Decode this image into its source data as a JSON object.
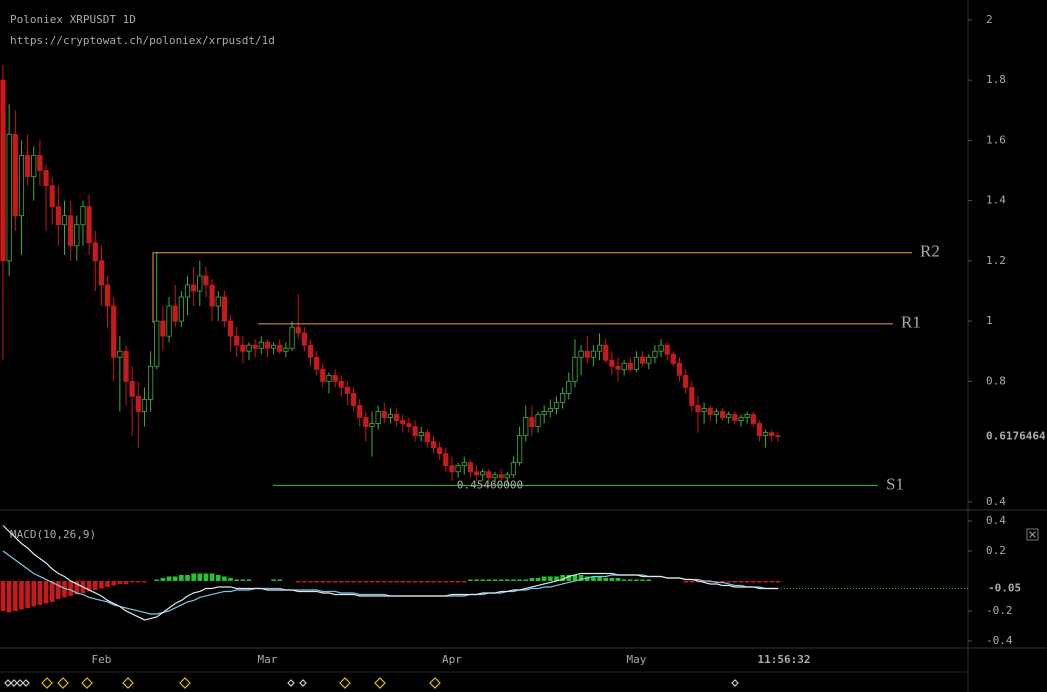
{
  "chart_data": [
    {
      "type": "candlestick",
      "title": "Poloniex XRPUSDT 1D",
      "subtitle": "https://cryptowat.ch/poloniex/xrpusdt/1d",
      "categories": [
        null,
        null,
        null,
        null,
        null,
        null,
        null,
        null,
        null,
        null,
        null,
        null,
        null,
        null,
        null,
        null,
        "Feb",
        null,
        null,
        null,
        null,
        null,
        null,
        null,
        null,
        null,
        null,
        null,
        null,
        null,
        null,
        null,
        null,
        null,
        null,
        null,
        null,
        null,
        null,
        null,
        null,
        null,
        null,
        "Mar",
        null,
        null,
        null,
        null,
        null,
        null,
        null,
        null,
        null,
        null,
        null,
        null,
        null,
        null,
        null,
        null,
        null,
        null,
        null,
        null,
        null,
        null,
        null,
        null,
        null,
        null,
        null,
        null,
        null,
        "Apr",
        null,
        null,
        null,
        null,
        null,
        null,
        null,
        null,
        null,
        null,
        null,
        null,
        null,
        null,
        null,
        null,
        null,
        null,
        null,
        null,
        null,
        null,
        null,
        null,
        null,
        null,
        null,
        null,
        null,
        "May",
        null,
        null,
        null,
        null,
        null,
        null,
        null,
        null,
        null,
        null,
        null,
        null,
        null,
        null,
        null,
        null,
        null,
        null,
        null,
        null,
        null,
        null,
        null,
        "11:56:32"
      ],
      "ohlc": [
        [
          1.8,
          1.85,
          0.87,
          1.2
        ],
        [
          1.2,
          1.72,
          1.15,
          1.62
        ],
        [
          1.62,
          1.7,
          1.3,
          1.35
        ],
        [
          1.35,
          1.6,
          1.22,
          1.55
        ],
        [
          1.55,
          1.62,
          1.45,
          1.48
        ],
        [
          1.48,
          1.58,
          1.4,
          1.55
        ],
        [
          1.55,
          1.6,
          1.45,
          1.5
        ],
        [
          1.5,
          1.52,
          1.3,
          1.45
        ],
        [
          1.45,
          1.48,
          1.32,
          1.38
        ],
        [
          1.38,
          1.45,
          1.25,
          1.32
        ],
        [
          1.32,
          1.4,
          1.22,
          1.35
        ],
        [
          1.35,
          1.4,
          1.2,
          1.25
        ],
        [
          1.25,
          1.35,
          1.2,
          1.32
        ],
        [
          1.32,
          1.4,
          1.25,
          1.38
        ],
        [
          1.38,
          1.42,
          1.22,
          1.26
        ],
        [
          1.26,
          1.3,
          1.1,
          1.2
        ],
        [
          1.2,
          1.25,
          1.05,
          1.12
        ],
        [
          1.12,
          1.15,
          0.98,
          1.05
        ],
        [
          1.05,
          1.08,
          0.8,
          0.88
        ],
        [
          0.88,
          0.95,
          0.7,
          0.9
        ],
        [
          0.9,
          0.92,
          0.72,
          0.8
        ],
        [
          0.8,
          0.85,
          0.62,
          0.75
        ],
        [
          0.75,
          0.8,
          0.58,
          0.7
        ],
        [
          0.7,
          0.78,
          0.65,
          0.74
        ],
        [
          0.74,
          0.9,
          0.7,
          0.85
        ],
        [
          0.85,
          1.23,
          0.84,
          1.0
        ],
        [
          1.0,
          1.05,
          0.9,
          0.95
        ],
        [
          0.95,
          1.08,
          0.93,
          1.05
        ],
        [
          1.05,
          1.12,
          0.98,
          1.0
        ],
        [
          1.0,
          1.1,
          0.98,
          1.08
        ],
        [
          1.08,
          1.15,
          1.02,
          1.12
        ],
        [
          1.12,
          1.18,
          1.05,
          1.1
        ],
        [
          1.1,
          1.2,
          1.05,
          1.15
        ],
        [
          1.15,
          1.18,
          1.08,
          1.12
        ],
        [
          1.12,
          1.14,
          1.0,
          1.05
        ],
        [
          1.05,
          1.1,
          1.0,
          1.08
        ],
        [
          1.08,
          1.1,
          0.98,
          1.0
        ],
        [
          1.0,
          1.02,
          0.9,
          0.95
        ],
        [
          0.95,
          0.98,
          0.88,
          0.92
        ],
        [
          0.92,
          0.95,
          0.86,
          0.9
        ],
        [
          0.9,
          0.93,
          0.87,
          0.92
        ],
        [
          0.92,
          0.94,
          0.88,
          0.91
        ],
        [
          0.91,
          0.95,
          0.89,
          0.93
        ],
        [
          0.93,
          0.94,
          0.88,
          0.91
        ],
        [
          0.91,
          0.93,
          0.89,
          0.92
        ],
        [
          0.92,
          0.94,
          0.89,
          0.9
        ],
        [
          0.9,
          0.93,
          0.88,
          0.91
        ],
        [
          0.91,
          1.0,
          0.9,
          0.98
        ],
        [
          0.98,
          1.09,
          0.94,
          0.96
        ],
        [
          0.96,
          0.98,
          0.9,
          0.92
        ],
        [
          0.92,
          0.94,
          0.85,
          0.88
        ],
        [
          0.88,
          0.9,
          0.82,
          0.84
        ],
        [
          0.84,
          0.86,
          0.78,
          0.8
        ],
        [
          0.8,
          0.83,
          0.76,
          0.82
        ],
        [
          0.82,
          0.84,
          0.78,
          0.8
        ],
        [
          0.8,
          0.82,
          0.75,
          0.78
        ],
        [
          0.78,
          0.8,
          0.72,
          0.76
        ],
        [
          0.76,
          0.78,
          0.7,
          0.72
        ],
        [
          0.72,
          0.74,
          0.65,
          0.68
        ],
        [
          0.68,
          0.7,
          0.6,
          0.65
        ],
        [
          0.65,
          0.7,
          0.55,
          0.66
        ],
        [
          0.66,
          0.72,
          0.64,
          0.7
        ],
        [
          0.7,
          0.73,
          0.66,
          0.68
        ],
        [
          0.68,
          0.71,
          0.66,
          0.69
        ],
        [
          0.69,
          0.71,
          0.65,
          0.67
        ],
        [
          0.67,
          0.69,
          0.63,
          0.66
        ],
        [
          0.66,
          0.68,
          0.63,
          0.65
        ],
        [
          0.65,
          0.67,
          0.6,
          0.62
        ],
        [
          0.62,
          0.65,
          0.6,
          0.63
        ],
        [
          0.63,
          0.64,
          0.58,
          0.6
        ],
        [
          0.6,
          0.62,
          0.56,
          0.58
        ],
        [
          0.58,
          0.6,
          0.54,
          0.56
        ],
        [
          0.56,
          0.58,
          0.5,
          0.52
        ],
        [
          0.52,
          0.55,
          0.47,
          0.5
        ],
        [
          0.5,
          0.53,
          0.48,
          0.52
        ],
        [
          0.52,
          0.55,
          0.49,
          0.53
        ],
        [
          0.53,
          0.54,
          0.48,
          0.5
        ],
        [
          0.5,
          0.52,
          0.47,
          0.49
        ],
        [
          0.49,
          0.51,
          0.47,
          0.5
        ],
        [
          0.5,
          0.51,
          0.47,
          0.48
        ],
        [
          0.48,
          0.5,
          0.46,
          0.49
        ],
        [
          0.49,
          0.51,
          0.47,
          0.48
        ],
        [
          0.48,
          0.5,
          0.46,
          0.49
        ],
        [
          0.49,
          0.55,
          0.48,
          0.53
        ],
        [
          0.53,
          0.65,
          0.52,
          0.62
        ],
        [
          0.62,
          0.72,
          0.6,
          0.68
        ],
        [
          0.68,
          0.72,
          0.62,
          0.65
        ],
        [
          0.65,
          0.7,
          0.63,
          0.69
        ],
        [
          0.69,
          0.72,
          0.66,
          0.7
        ],
        [
          0.7,
          0.74,
          0.68,
          0.71
        ],
        [
          0.71,
          0.75,
          0.69,
          0.73
        ],
        [
          0.73,
          0.78,
          0.71,
          0.76
        ],
        [
          0.76,
          0.83,
          0.74,
          0.8
        ],
        [
          0.8,
          0.94,
          0.78,
          0.88
        ],
        [
          0.88,
          0.92,
          0.82,
          0.9
        ],
        [
          0.9,
          0.95,
          0.86,
          0.88
        ],
        [
          0.88,
          0.92,
          0.85,
          0.9
        ],
        [
          0.9,
          0.96,
          0.87,
          0.92
        ],
        [
          0.92,
          0.94,
          0.86,
          0.87
        ],
        [
          0.87,
          0.9,
          0.82,
          0.85
        ],
        [
          0.85,
          0.88,
          0.8,
          0.84
        ],
        [
          0.84,
          0.87,
          0.82,
          0.86
        ],
        [
          0.86,
          0.88,
          0.83,
          0.84
        ],
        [
          0.84,
          0.9,
          0.83,
          0.88
        ],
        [
          0.88,
          0.9,
          0.85,
          0.86
        ],
        [
          0.86,
          0.89,
          0.84,
          0.88
        ],
        [
          0.88,
          0.92,
          0.86,
          0.9
        ],
        [
          0.9,
          0.94,
          0.88,
          0.92
        ],
        [
          0.92,
          0.93,
          0.87,
          0.89
        ],
        [
          0.89,
          0.9,
          0.85,
          0.86
        ],
        [
          0.86,
          0.88,
          0.8,
          0.82
        ],
        [
          0.82,
          0.84,
          0.76,
          0.78
        ],
        [
          0.78,
          0.8,
          0.7,
          0.72
        ],
        [
          0.72,
          0.75,
          0.63,
          0.7
        ],
        [
          0.7,
          0.73,
          0.66,
          0.71
        ],
        [
          0.71,
          0.72,
          0.67,
          0.69
        ],
        [
          0.69,
          0.71,
          0.66,
          0.7
        ],
        [
          0.7,
          0.71,
          0.67,
          0.68
        ],
        [
          0.68,
          0.7,
          0.66,
          0.69
        ],
        [
          0.69,
          0.7,
          0.66,
          0.67
        ],
        [
          0.67,
          0.69,
          0.65,
          0.68
        ],
        [
          0.68,
          0.7,
          0.66,
          0.69
        ],
        [
          0.69,
          0.7,
          0.65,
          0.66
        ],
        [
          0.66,
          0.67,
          0.6,
          0.62
        ],
        [
          0.62,
          0.64,
          0.58,
          0.63
        ],
        [
          0.63,
          0.64,
          0.6,
          0.62
        ],
        [
          0.62,
          0.63,
          0.6,
          0.6176464
        ]
      ],
      "up_color": "#3fae3f",
      "down_color": "#c81a1a",
      "ylim": [
        0.373,
        2.066
      ],
      "yticks": [
        0.4,
        0.8,
        1,
        1.2,
        1.4,
        1.6,
        1.8,
        2
      ],
      "levels": [
        {
          "name": "R2",
          "value": 1.227,
          "color": "#f0a030"
        },
        {
          "name": "R1",
          "value": 0.991,
          "color": "#f0a030"
        },
        {
          "name": "S1",
          "value": 0.4546,
          "value_label": "0.45460000",
          "color": "#3fc13f"
        }
      ]
    },
    {
      "type": "macd",
      "title": "MACD(10,26,9)",
      "histogram": [
        -0.2,
        -0.21,
        -0.2,
        -0.19,
        -0.18,
        -0.17,
        -0.16,
        -0.15,
        -0.14,
        -0.12,
        -0.11,
        -0.1,
        -0.09,
        -0.08,
        -0.07,
        -0.06,
        -0.05,
        -0.04,
        -0.03,
        -0.02,
        -0.02,
        -0.01,
        -0.01,
        -0.01,
        0,
        0.01,
        0.02,
        0.03,
        0.03,
        0.04,
        0.04,
        0.05,
        0.05,
        0.05,
        0.05,
        0.04,
        0.03,
        0.02,
        0.01,
        0.01,
        0.01,
        0,
        0,
        0,
        0.01,
        0.01,
        0,
        0,
        -0.01,
        -0.01,
        -0.01,
        -0.01,
        -0.01,
        -0.01,
        -0.01,
        -0.01,
        -0.01,
        -0.01,
        -0.01,
        -0.01,
        -0.01,
        -0.01,
        -0.01,
        -0.01,
        -0.01,
        -0.01,
        -0.01,
        -0.01,
        -0.01,
        -0.01,
        -0.01,
        -0.01,
        -0.01,
        -0.01,
        -0.01,
        -0.01,
        0.01,
        0.01,
        0.01,
        0.01,
        0.01,
        0.01,
        0.01,
        0.01,
        0.01,
        0.01,
        0.02,
        0.02,
        0.03,
        0.03,
        0.03,
        0.04,
        0.04,
        0.04,
        0.04,
        0.03,
        0.03,
        0.03,
        0.02,
        0.02,
        0.02,
        0.01,
        0.01,
        0.01,
        0.01,
        0.01,
        0,
        0,
        0,
        0,
        0,
        -0.01,
        -0.01,
        -0.01,
        -0.01,
        -0.01,
        -0.01,
        -0.01,
        -0.01,
        -0.01,
        -0.01,
        -0.01,
        -0.01,
        -0.01,
        -0.01,
        -0.01,
        -0.01
      ],
      "up_color": "#22c62a",
      "down_color": "#c81a1a",
      "macd": {
        "color": "#dfe8ee",
        "values": [
          0.37,
          0.33,
          0.29,
          0.25,
          0.22,
          0.18,
          0.15,
          0.12,
          0.08,
          0.05,
          0.03,
          0,
          -0.02,
          -0.04,
          -0.06,
          -0.08,
          -0.1,
          -0.13,
          -0.15,
          -0.17,
          -0.2,
          -0.22,
          -0.24,
          -0.26,
          -0.25,
          -0.24,
          -0.21,
          -0.18,
          -0.15,
          -0.13,
          -0.1,
          -0.08,
          -0.07,
          -0.05,
          -0.05,
          -0.04,
          -0.04,
          -0.04,
          -0.05,
          -0.05,
          -0.05,
          -0.05,
          -0.05,
          -0.06,
          -0.06,
          -0.06,
          -0.06,
          -0.06,
          -0.07,
          -0.07,
          -0.07,
          -0.07,
          -0.08,
          -0.08,
          -0.09,
          -0.09,
          -0.09,
          -0.09,
          -0.1,
          -0.1,
          -0.1,
          -0.1,
          -0.1,
          -0.1,
          -0.1,
          -0.1,
          -0.1,
          -0.1,
          -0.1,
          -0.1,
          -0.1,
          -0.1,
          -0.1,
          -0.09,
          -0.09,
          -0.09,
          -0.09,
          -0.09,
          -0.08,
          -0.08,
          -0.08,
          -0.07,
          -0.07,
          -0.06,
          -0.06,
          -0.05,
          -0.04,
          -0.03,
          -0.02,
          -0.01,
          0,
          0.01,
          0.03,
          0.04,
          0.05,
          0.05,
          0.05,
          0.05,
          0.05,
          0.05,
          0.04,
          0.04,
          0.04,
          0.04,
          0.03,
          0.03,
          0.03,
          0.03,
          0.02,
          0.02,
          0.02,
          0.01,
          0.01,
          0,
          -0.01,
          -0.02,
          -0.02,
          -0.03,
          -0.03,
          -0.04,
          -0.04,
          -0.04,
          -0.04,
          -0.05,
          -0.05,
          -0.05,
          -0.05
        ]
      },
      "signal": {
        "color": "#7ec8e3",
        "values": [
          0.2,
          0.17,
          0.14,
          0.11,
          0.08,
          0.05,
          0.03,
          0.01,
          -0.01,
          -0.03,
          -0.05,
          -0.06,
          -0.08,
          -0.09,
          -0.11,
          -0.12,
          -0.13,
          -0.14,
          -0.16,
          -0.17,
          -0.18,
          -0.19,
          -0.2,
          -0.21,
          -0.22,
          -0.22,
          -0.21,
          -0.2,
          -0.18,
          -0.16,
          -0.14,
          -0.13,
          -0.11,
          -0.1,
          -0.09,
          -0.08,
          -0.07,
          -0.07,
          -0.06,
          -0.06,
          -0.06,
          -0.05,
          -0.05,
          -0.05,
          -0.05,
          -0.05,
          -0.06,
          -0.06,
          -0.06,
          -0.06,
          -0.06,
          -0.06,
          -0.07,
          -0.07,
          -0.07,
          -0.08,
          -0.08,
          -0.08,
          -0.09,
          -0.09,
          -0.09,
          -0.09,
          -0.09,
          -0.1,
          -0.1,
          -0.1,
          -0.1,
          -0.1,
          -0.1,
          -0.1,
          -0.1,
          -0.1,
          -0.1,
          -0.1,
          -0.1,
          -0.1,
          -0.09,
          -0.09,
          -0.09,
          -0.08,
          -0.08,
          -0.08,
          -0.07,
          -0.07,
          -0.06,
          -0.06,
          -0.05,
          -0.05,
          -0.04,
          -0.04,
          -0.03,
          -0.02,
          -0.01,
          0,
          0.01,
          0.02,
          0.03,
          0.03,
          0.03,
          0.04,
          0.04,
          0.04,
          0.04,
          0.04,
          0.04,
          0.03,
          0.03,
          0.03,
          0.02,
          0.02,
          0.02,
          0.01,
          0.01,
          0.01,
          0,
          0,
          -0.01,
          -0.01,
          -0.02,
          -0.03,
          -0.03,
          -0.04,
          -0.04,
          -0.04,
          -0.05,
          -0.05,
          -0.05
        ]
      },
      "ylim": [
        -0.447,
        0.46
      ],
      "yticks": [
        0.4,
        0.2,
        -0.2,
        -0.4
      ]
    }
  ]
}
